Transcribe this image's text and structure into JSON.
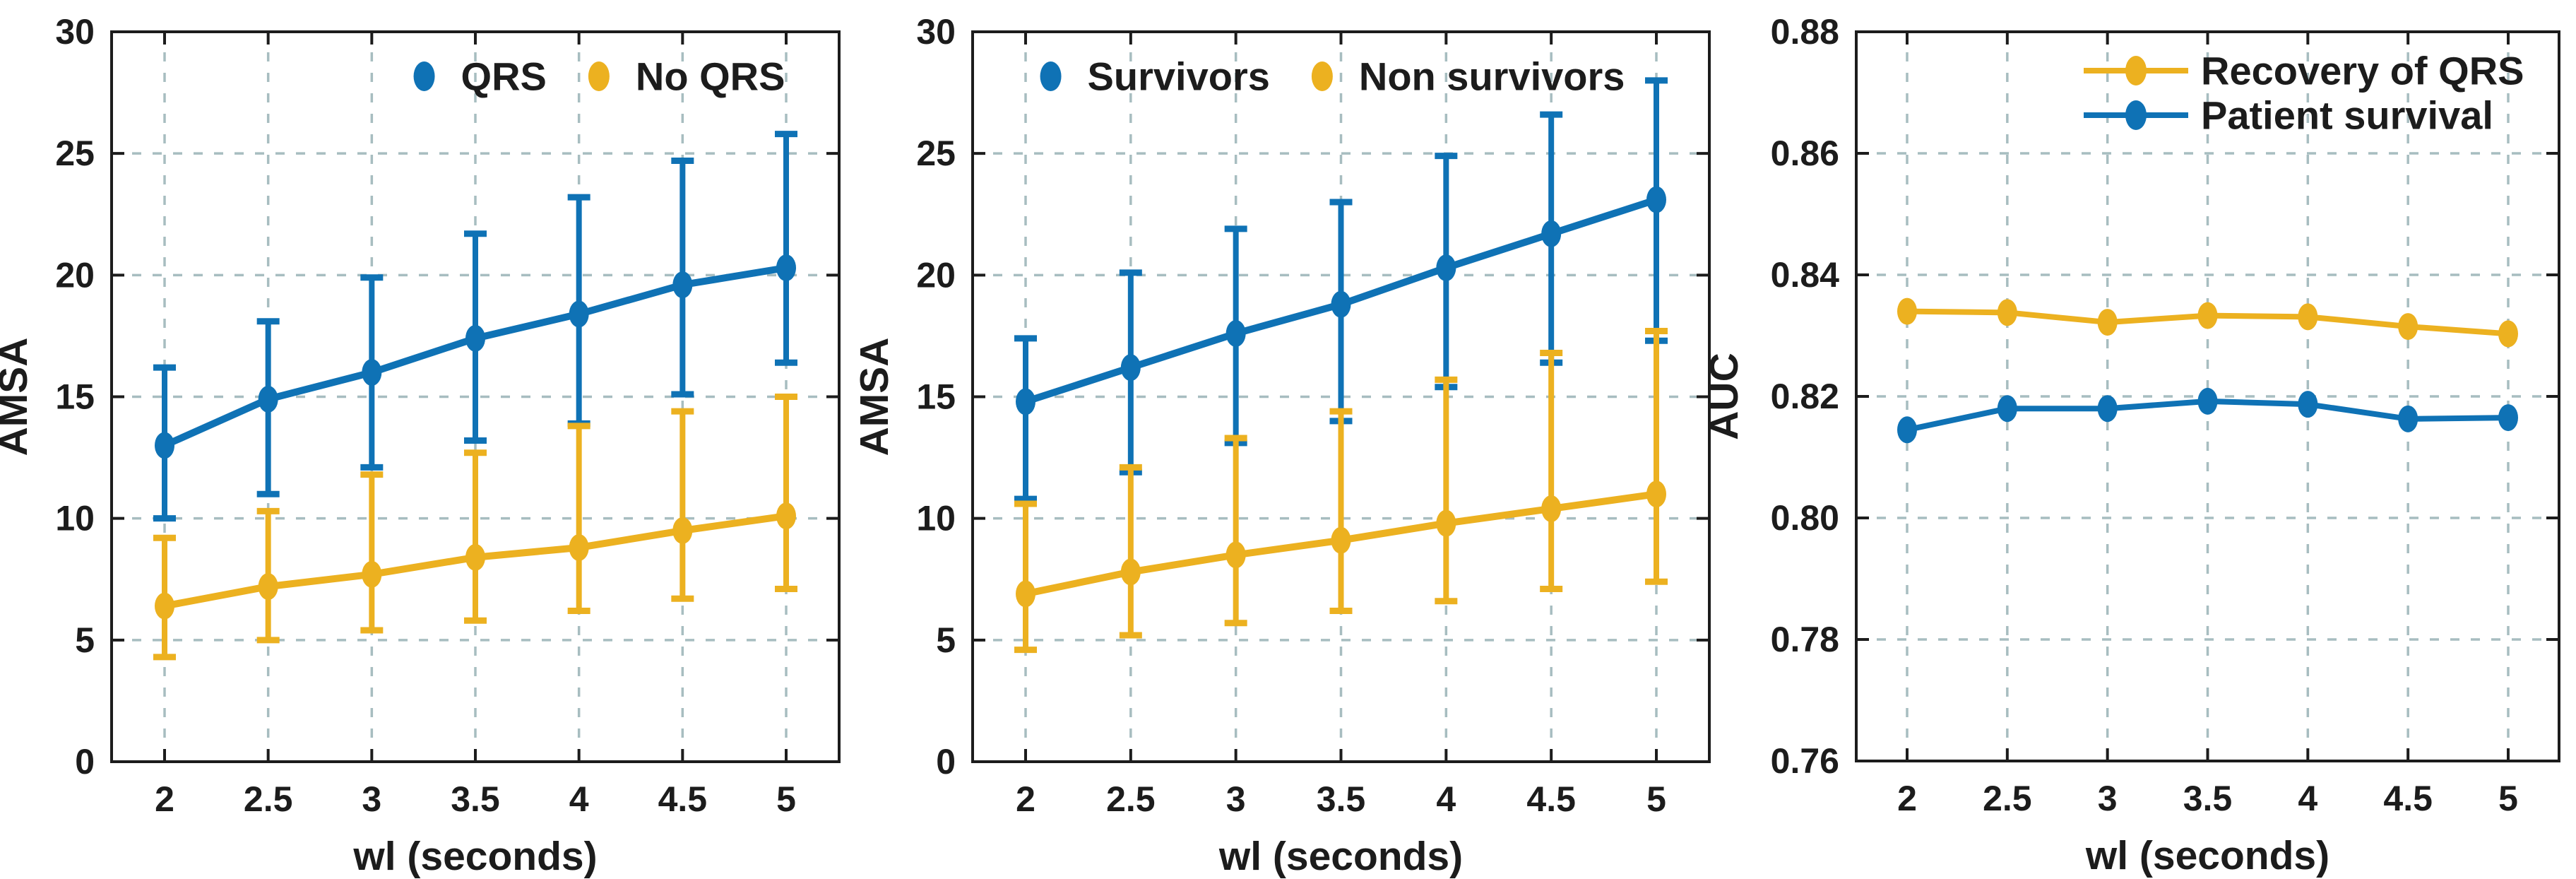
{
  "figure": {
    "background": "#ffffff",
    "description_colors": {
      "series_blue": "#0f72b5",
      "series_yellow": "#ecb120",
      "grid": "#a7bdc0",
      "axis": "#1c1c1c",
      "text": "#1c1c1c"
    }
  },
  "chart_data": [
    {
      "type": "line",
      "name": "amsa-by-qrs-recovery",
      "xlabel": "wl (seconds)",
      "ylabel": "AMSA",
      "x": [
        2,
        2.5,
        3,
        3.5,
        4,
        4.5,
        5
      ],
      "x_tick_labels": [
        "2",
        "2.5",
        "3",
        "3.5",
        "4",
        "4.5",
        "5"
      ],
      "ylim": [
        0,
        30
      ],
      "yticks": [
        0,
        5,
        10,
        15,
        20,
        25,
        30
      ],
      "ytick_labels": [
        "0",
        "5",
        "10",
        "15",
        "20",
        "25",
        "30"
      ],
      "grid": true,
      "legend_style": "marker",
      "legend_position": "top-center",
      "series": [
        {
          "name": "QRS",
          "color": "#0f72b5",
          "values": [
            13.0,
            14.9,
            16.0,
            17.4,
            18.4,
            19.6,
            20.3
          ],
          "err_lo": [
            10.0,
            11.0,
            12.1,
            13.2,
            13.9,
            15.1,
            16.4
          ],
          "err_hi": [
            16.2,
            18.1,
            19.9,
            21.7,
            23.2,
            24.7,
            25.8
          ]
        },
        {
          "name": "No QRS",
          "color": "#ecb120",
          "values": [
            6.4,
            7.2,
            7.7,
            8.4,
            8.8,
            9.5,
            10.1
          ],
          "err_lo": [
            4.3,
            5.0,
            5.4,
            5.8,
            6.2,
            6.7,
            7.1
          ],
          "err_hi": [
            9.2,
            10.3,
            11.8,
            12.7,
            13.8,
            14.4,
            15.0
          ]
        }
      ]
    },
    {
      "type": "line",
      "name": "amsa-by-patient-survival",
      "xlabel": "wl (seconds)",
      "ylabel": "AMSA",
      "x": [
        2,
        2.5,
        3,
        3.5,
        4,
        4.5,
        5
      ],
      "x_tick_labels": [
        "2",
        "2.5",
        "3",
        "3.5",
        "4",
        "4.5",
        "5"
      ],
      "ylim": [
        0,
        30
      ],
      "yticks": [
        0,
        5,
        10,
        15,
        20,
        25,
        30
      ],
      "ytick_labels": [
        "0",
        "5",
        "10",
        "15",
        "20",
        "25",
        "30"
      ],
      "grid": true,
      "legend_style": "marker",
      "legend_position": "top-center",
      "series": [
        {
          "name": "Survivors",
          "color": "#0f72b5",
          "values": [
            14.8,
            16.2,
            17.6,
            18.8,
            20.3,
            21.7,
            23.1
          ],
          "err_lo": [
            10.8,
            11.9,
            13.1,
            14.0,
            15.4,
            16.4,
            17.3
          ],
          "err_hi": [
            17.4,
            20.1,
            21.9,
            23.0,
            24.9,
            26.6,
            28.0
          ]
        },
        {
          "name": "Non survivors",
          "color": "#ecb120",
          "values": [
            6.9,
            7.8,
            8.5,
            9.1,
            9.8,
            10.4,
            11.0
          ],
          "err_lo": [
            4.6,
            5.2,
            5.7,
            6.2,
            6.6,
            7.1,
            7.4
          ],
          "err_hi": [
            10.6,
            12.1,
            13.3,
            14.4,
            15.7,
            16.8,
            17.7
          ]
        }
      ]
    },
    {
      "type": "line",
      "name": "auc-vs-window-length",
      "xlabel": "wl (seconds)",
      "ylabel": "AUC",
      "x": [
        2,
        2.5,
        3,
        3.5,
        4,
        4.5,
        5
      ],
      "x_tick_labels": [
        "2",
        "2.5",
        "3",
        "3.5",
        "4",
        "4.5",
        "5"
      ],
      "ylim": [
        0.76,
        0.88
      ],
      "yticks": [
        0.76,
        0.78,
        0.8,
        0.82,
        0.84,
        0.86,
        0.88
      ],
      "ytick_labels": [
        "0.76",
        "0.78",
        "0.80",
        "0.82",
        "0.84",
        "0.86",
        "0.88"
      ],
      "grid": true,
      "legend_style": "line-marker",
      "legend_position": "top-right",
      "series": [
        {
          "name": "Recovery of QRS",
          "color": "#ecb120",
          "values": [
            0.834,
            0.8338,
            0.8322,
            0.8333,
            0.8331,
            0.8315,
            0.8303
          ]
        },
        {
          "name": "Patient survival",
          "color": "#0f72b5",
          "values": [
            0.8145,
            0.818,
            0.818,
            0.8192,
            0.8187,
            0.8163,
            0.8165
          ]
        }
      ]
    }
  ]
}
